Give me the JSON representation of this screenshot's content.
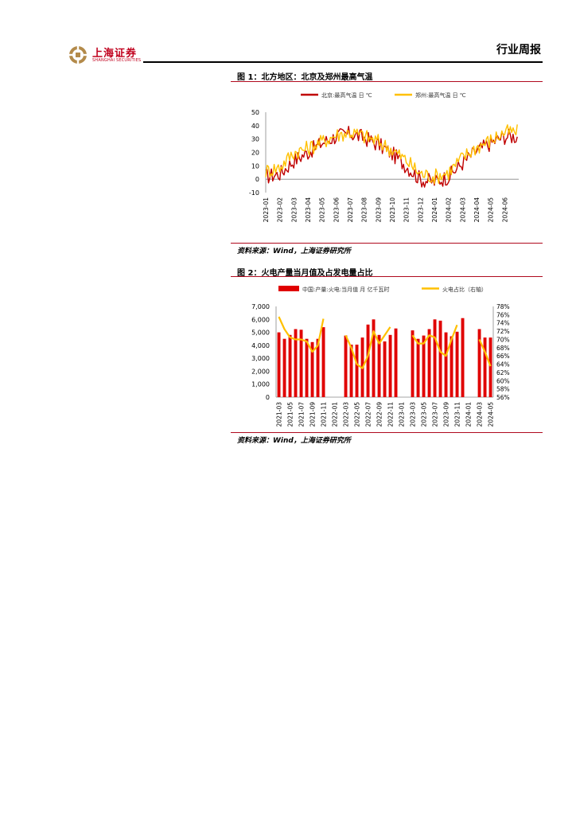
{
  "header": {
    "logo_text": "上海证券",
    "logo_subtext": "SHANGHAI SECURITIES",
    "report_type": "行业周报"
  },
  "figure1": {
    "title": "图 1：北方地区：北京及郑州最高气温",
    "source": "资料来源：Wind，上海证券研究所"
  },
  "figure2": {
    "title": "图 2：火电产量当月值及占发电量占比",
    "source": "资料来源：Wind，上海证券研究所"
  },
  "colors": {
    "red": "#c00000",
    "orange": "#ffc000",
    "brand": "#c0001d"
  },
  "chart_data": [
    {
      "type": "line",
      "title": "",
      "x_tick_labels": [
        "2023-01",
        "2023-02",
        "2023-03",
        "2023-04",
        "2023-05",
        "2023-06",
        "2023-07",
        "2023-08",
        "2023-09",
        "2023-10",
        "2023-11",
        "2023-12",
        "2024-01",
        "2024-02",
        "2024-03",
        "2024-04",
        "2024-05",
        "2024-06"
      ],
      "ylim": [
        -10,
        50
      ],
      "y_ticks": [
        -10,
        0,
        10,
        20,
        30,
        40,
        50
      ],
      "legend_position": "top",
      "series": [
        {
          "name": "北京:最高气温 日 ℃",
          "color": "#c00000",
          "monthly_values": [
            2,
            4,
            14,
            20,
            27,
            32,
            34,
            31,
            26,
            19,
            10,
            0,
            -2,
            2,
            12,
            21,
            27,
            32
          ]
        },
        {
          "name": "郑州:最高气温 日 ℃",
          "color": "#ffc000",
          "monthly_values": [
            6,
            9,
            20,
            23,
            28,
            33,
            35,
            32,
            28,
            22,
            14,
            4,
            2,
            5,
            16,
            24,
            29,
            35
          ]
        }
      ]
    },
    {
      "type": "bar",
      "title": "",
      "categories": [
        "2021-03",
        "2021-04",
        "2021-05",
        "2021-06",
        "2021-07",
        "2021-08",
        "2021-09",
        "2021-10",
        "2021-11",
        "2021-12",
        "2022-01",
        "2022-02",
        "2022-03",
        "2022-04",
        "2022-05",
        "2022-06",
        "2022-07",
        "2022-08",
        "2022-09",
        "2022-10",
        "2022-11",
        "2022-12",
        "2023-01",
        "2023-02",
        "2023-03",
        "2023-04",
        "2023-05",
        "2023-06",
        "2023-07",
        "2023-08",
        "2023-09",
        "2023-10",
        "2023-11",
        "2023-12",
        "2024-01",
        "2024-02",
        "2024-03",
        "2024-04",
        "2024-05"
      ],
      "x_tick_labels": [
        "2021-03",
        "2021-05",
        "2021-07",
        "2021-09",
        "2021-11",
        "2022-01",
        "2022-03",
        "2022-05",
        "2022-07",
        "2022-09",
        "2022-11",
        "2023-01",
        "2023-03",
        "2023-05",
        "2023-07",
        "2023-09",
        "2023-11",
        "2024-01",
        "2024-03",
        "2024-05"
      ],
      "ylim_left": [
        0,
        7000
      ],
      "y_ticks_left": [
        "0",
        "1,000",
        "2,000",
        "3,000",
        "4,000",
        "5,000",
        "6,000",
        "7,000"
      ],
      "ylim_right": [
        56,
        78
      ],
      "y_ticks_right": [
        "56%",
        "58%",
        "60%",
        "62%",
        "64%",
        "66%",
        "68%",
        "70%",
        "72%",
        "74%",
        "76%",
        "78%"
      ],
      "legend_position": "top",
      "series": [
        {
          "name": "中国:产量:火电:当月值 月 亿千瓦时",
          "color": "#e00000",
          "axis": "left",
          "values": [
            5000,
            4500,
            4800,
            5250,
            5200,
            4500,
            4250,
            4500,
            5400,
            null,
            null,
            null,
            4750,
            4050,
            4050,
            4600,
            5600,
            6000,
            4800,
            4300,
            4800,
            5300,
            null,
            null,
            5150,
            4500,
            4750,
            5250,
            6000,
            5900,
            5000,
            4700,
            5050,
            6100,
            null,
            null,
            5250,
            4600,
            4600
          ]
        },
        {
          "name": "火电占比（右轴）",
          "color": "#ffc000",
          "axis": "right",
          "values": [
            75.5,
            72.5,
            70.5,
            70,
            70,
            69.5,
            67,
            68.5,
            75,
            null,
            null,
            null,
            71,
            68,
            64,
            63,
            66,
            72,
            69,
            71,
            73,
            null,
            null,
            null,
            71,
            69,
            69,
            71,
            70.5,
            67,
            66,
            70,
            73.5,
            null,
            null,
            null,
            70,
            67,
            63.5
          ]
        }
      ]
    }
  ]
}
